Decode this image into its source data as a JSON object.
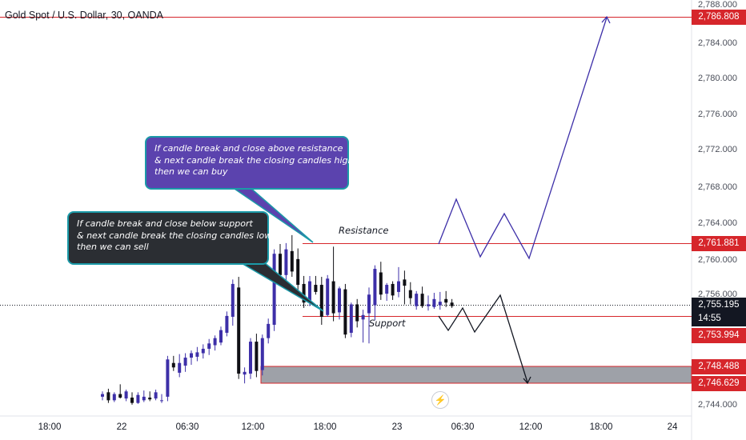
{
  "symbol": {
    "title": "Gold Spot / U.S. Dollar, 30, OANDA"
  },
  "notes": {
    "buy": [
      "If candle break and close above resistance",
      "& next candle break the closing candles high",
      "then we can buy"
    ],
    "sell": [
      "If candle break and close below support",
      "& next candle break the closing candles low",
      "then we can sell"
    ]
  },
  "levels": {
    "resistance_label": "Resistance",
    "support_label": "Support"
  },
  "price_tags": {
    "target": "2,786.808",
    "resistance": "2,761.881",
    "current": "2,755.195",
    "countdown": "14:55",
    "support": "2,753.994",
    "zone_top": "2,748.488",
    "zone_bottom": "2,746.629"
  },
  "colors": {
    "up_candle": "#3d2fa8",
    "down_candle": "#0f0f14",
    "level_line": "#d6262b",
    "buy_path": "#3d2fa8",
    "sell_path": "#131722",
    "zone_fill": "#9ea1a8",
    "note_buy_bg": "#5b43ae",
    "note_sell_bg": "#2b2e33",
    "note_border": "#1b9aa8"
  },
  "chart_data": {
    "type": "candlestick",
    "y_axis": {
      "ticks": [
        "2,788.000",
        "2,784.000",
        "2,780.000",
        "2,776.000",
        "2,772.000",
        "2,768.000",
        "2,764.000",
        "2,760.000",
        "2,756.000",
        "2,744.000"
      ],
      "range": [
        2743.8,
        2788.6
      ]
    },
    "x_axis": {
      "ticks": [
        "18:00",
        "22",
        "06:30",
        "12:00",
        "18:00",
        "23",
        "06:30",
        "12:00",
        "18:00",
        "24"
      ]
    },
    "horizontal_levels": [
      2786.808,
      2761.881,
      2753.994
    ],
    "current_price": 2755.195,
    "demand_zone": [
      2746.629,
      2748.488
    ],
    "candles": [
      [
        2745.0,
        2745.6,
        2744.6,
        2745.3
      ],
      [
        2745.5,
        2745.9,
        2744.3,
        2744.6
      ],
      [
        2744.6,
        2745.5,
        2744.4,
        2745.3
      ],
      [
        2745.3,
        2746.4,
        2744.8,
        2744.9
      ],
      [
        2744.8,
        2745.8,
        2744.5,
        2745.6
      ],
      [
        2744.9,
        2745.5,
        2744.1,
        2744.3
      ],
      [
        2744.3,
        2745.5,
        2744.2,
        2745.2
      ],
      [
        2744.6,
        2745.7,
        2744.4,
        2745.0
      ],
      [
        2744.9,
        2745.6,
        2744.5,
        2744.7
      ],
      [
        2744.8,
        2745.8,
        2744.6,
        2745.5
      ],
      [
        2744.6,
        2745.3,
        2744.3,
        2744.6
      ],
      [
        2745.0,
        2749.6,
        2744.5,
        2749.2
      ],
      [
        2748.8,
        2749.6,
        2747.9,
        2748.3
      ],
      [
        2747.7,
        2749.8,
        2747.2,
        2748.8
      ],
      [
        2748.5,
        2749.9,
        2747.8,
        2749.4
      ],
      [
        2749.4,
        2750.2,
        2748.6,
        2749.9
      ],
      [
        2749.5,
        2750.6,
        2749.0,
        2750.0
      ],
      [
        2749.9,
        2750.9,
        2749.3,
        2750.4
      ],
      [
        2750.4,
        2751.5,
        2749.7,
        2751.0
      ],
      [
        2750.8,
        2751.9,
        2750.2,
        2751.6
      ],
      [
        2751.1,
        2752.9,
        2750.8,
        2752.5
      ],
      [
        2752.2,
        2754.6,
        2751.8,
        2754.1
      ],
      [
        2754.0,
        2758.2,
        2753.0,
        2757.7
      ],
      [
        2757.3,
        2758.5,
        2747.0,
        2747.6
      ],
      [
        2747.5,
        2748.3,
        2746.5,
        2747.8
      ],
      [
        2747.6,
        2751.6,
        2747.0,
        2751.2
      ],
      [
        2751.2,
        2752.1,
        2747.2,
        2747.9
      ],
      [
        2748.0,
        2752.0,
        2747.4,
        2751.6
      ],
      [
        2751.6,
        2753.8,
        2751.0,
        2753.2
      ],
      [
        2753.1,
        2761.6,
        2752.4,
        2761.1
      ],
      [
        2761.1,
        2762.2,
        2758.0,
        2758.7
      ],
      [
        2758.7,
        2762.3,
        2757.8,
        2761.6
      ],
      [
        2761.4,
        2763.2,
        2758.5,
        2759.1
      ],
      [
        2760.5,
        2761.7,
        2757.0,
        2757.6
      ],
      [
        2757.7,
        2758.6,
        2755.0,
        2755.6
      ],
      [
        2755.8,
        2758.6,
        2755.2,
        2758.0
      ],
      [
        2757.6,
        2758.6,
        2756.5,
        2756.8
      ],
      [
        2757.6,
        2758.5,
        2753.1,
        2754.0
      ],
      [
        2754.2,
        2758.7,
        2754.0,
        2758.3
      ],
      [
        2758.0,
        2761.9,
        2753.5,
        2754.4
      ],
      [
        2754.5,
        2757.4,
        2753.7,
        2757.2
      ],
      [
        2757.1,
        2757.7,
        2751.6,
        2752.0
      ],
      [
        2752.2,
        2755.6,
        2751.7,
        2755.4
      ],
      [
        2755.4,
        2756.0,
        2752.8,
        2753.5
      ],
      [
        2753.7,
        2754.8,
        2751.1,
        2754.2
      ],
      [
        2754.4,
        2757.3,
        2751.0,
        2756.5
      ],
      [
        2755.3,
        2759.8,
        2753.6,
        2759.4
      ],
      [
        2759.0,
        2760.2,
        2755.9,
        2756.5
      ],
      [
        2756.6,
        2757.8,
        2755.8,
        2757.6
      ],
      [
        2757.7,
        2758.0,
        2755.9,
        2756.4
      ],
      [
        2756.8,
        2759.6,
        2756.2,
        2758.0
      ],
      [
        2758.2,
        2759.2,
        2755.4,
        2757.5
      ],
      [
        2757.0,
        2757.9,
        2755.4,
        2756.1
      ],
      [
        2755.2,
        2756.9,
        2754.8,
        2756.6
      ],
      [
        2756.6,
        2757.4,
        2755.0,
        2755.2
      ],
      [
        2755.2,
        2756.4,
        2754.7,
        2755.4
      ],
      [
        2755.1,
        2756.7,
        2754.9,
        2756.0
      ],
      [
        2755.3,
        2756.8,
        2754.8,
        2755.7
      ],
      [
        2756.0,
        2756.9,
        2755.1,
        2755.6
      ],
      [
        2755.6,
        2756.0,
        2755.0,
        2755.2
      ]
    ]
  }
}
